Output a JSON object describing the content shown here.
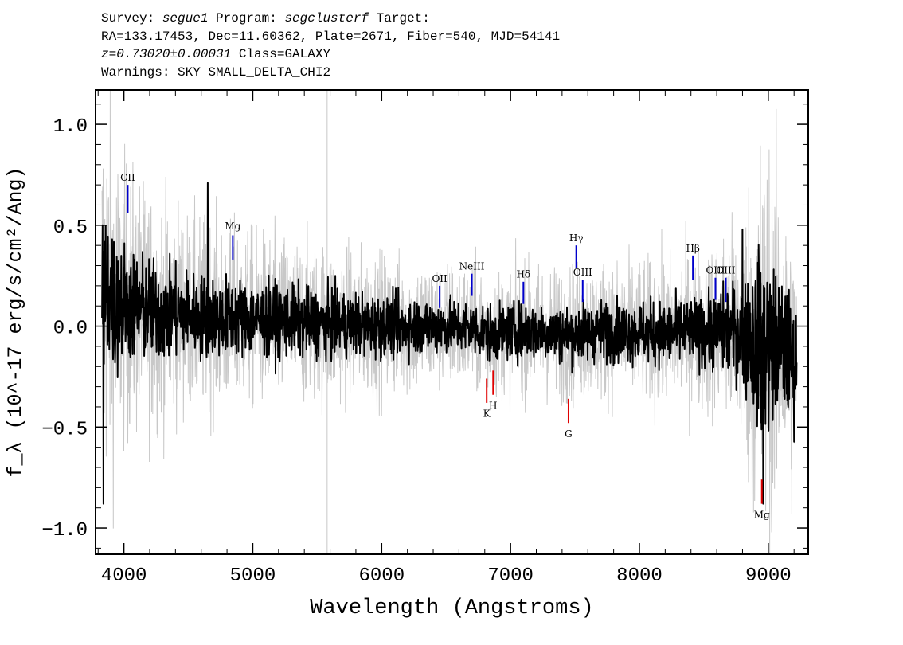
{
  "header": {
    "survey_label": "Survey: ",
    "survey": "segue1",
    "program_label": " Program: ",
    "program": "segclusterf",
    "target_label": " Target:",
    "line2": "RA=133.17453, Dec=11.60362, Plate=2671, Fiber=540, MJD=54141",
    "redshift": "z=0.73020±0.00031",
    "class_text": " Class=GALAXY",
    "warnings": "Warnings: SKY SMALL_DELTA_CHI2"
  },
  "chart_data": {
    "type": "line",
    "xlabel": "Wavelength (Angstroms)",
    "ylabel": "f_λ (10^-17 erg/s/cm²/Ang)",
    "xlim": [
      3780,
      9310
    ],
    "ylim": [
      -1.13,
      1.17
    ],
    "xticks": [
      4000,
      5000,
      6000,
      7000,
      8000,
      9000
    ],
    "yticks": [
      1.0,
      0.5,
      0.0,
      -0.5,
      -1.0
    ],
    "ytick_labels": [
      "1.0",
      "0.5",
      "0.0",
      "−0.5",
      "−1.0"
    ],
    "series": [
      {
        "role": "flux",
        "color": "#000000",
        "x": [
          3830,
          3880,
          3930,
          4000,
          4080,
          4160,
          4250,
          4350,
          4450,
          4550,
          4650,
          4750,
          4850,
          4950,
          5050,
          5200,
          5400,
          5600,
          5800,
          6000,
          6200,
          6400,
          6550,
          6700,
          6850,
          7000,
          7150,
          7300,
          7450,
          7600,
          7750,
          7900,
          8050,
          8200,
          8350,
          8500,
          8650,
          8800,
          8950,
          9100,
          9220
        ],
        "y": [
          0.12,
          0.18,
          0.1,
          0.12,
          0.1,
          0.08,
          0.07,
          0.06,
          0.07,
          0.05,
          0.05,
          0.04,
          0.05,
          0.04,
          0.03,
          0.03,
          0.02,
          0.01,
          0.01,
          0.0,
          0.0,
          0.0,
          0.0,
          -0.01,
          -0.04,
          -0.03,
          -0.02,
          -0.03,
          -0.04,
          -0.03,
          -0.02,
          -0.03,
          -0.03,
          -0.04,
          -0.02,
          -0.03,
          -0.02,
          -0.03,
          -0.1,
          -0.1,
          -0.2
        ]
      },
      {
        "role": "error envelope (1σ)",
        "color": "#c8c8c8",
        "x": [
          3830,
          3900,
          4000,
          4200,
          4500,
          5000,
          5500,
          6000,
          6500,
          7000,
          7500,
          8000,
          8500,
          8800,
          8950,
          9100,
          9220
        ],
        "y": [
          0.55,
          0.45,
          0.35,
          0.3,
          0.25,
          0.22,
          0.2,
          0.18,
          0.16,
          0.16,
          0.17,
          0.18,
          0.2,
          0.3,
          0.55,
          0.4,
          0.35
        ]
      }
    ],
    "spikes": [
      {
        "x": 3840,
        "y": -0.88
      },
      {
        "x": 4650,
        "y": 0.71
      },
      {
        "x": 8960,
        "y": -0.88
      },
      {
        "x": 8800,
        "y": 0.48
      }
    ],
    "sky_line_x": 5577,
    "emission_lines": [
      {
        "label": "CII",
        "x": 4030,
        "y1": 0.56,
        "y2": 0.7,
        "label_y": 0.72
      },
      {
        "label": "Mg",
        "x": 4845,
        "y1": 0.33,
        "y2": 0.45,
        "label_y": 0.48
      },
      {
        "label": "OII",
        "x": 6450,
        "y1": 0.09,
        "y2": 0.2,
        "label_y": 0.22
      },
      {
        "label": "NeIII",
        "x": 6700,
        "y1": 0.15,
        "y2": 0.26,
        "label_y": 0.28
      },
      {
        "label": "Hδ",
        "x": 7100,
        "y1": 0.11,
        "y2": 0.22,
        "label_y": 0.24
      },
      {
        "label": "Hγ",
        "x": 7510,
        "y1": 0.29,
        "y2": 0.4,
        "label_y": 0.42
      },
      {
        "label": "OIII",
        "x": 7560,
        "y1": 0.12,
        "y2": 0.23,
        "label_y": 0.25
      },
      {
        "label": "Hβ",
        "x": 8415,
        "y1": 0.23,
        "y2": 0.35,
        "label_y": 0.37
      },
      {
        "label": "OIII",
        "x": 8590,
        "y1": 0.13,
        "y2": 0.24,
        "label_y": 0.26
      },
      {
        "label": "OIII",
        "x": 8670,
        "y1": 0.12,
        "y2": 0.24,
        "label_y": 0.26
      }
    ],
    "absorption_lines": [
      {
        "label": "K",
        "x": 6815,
        "y1": -0.38,
        "y2": -0.26,
        "label_y": -0.45
      },
      {
        "label": "H",
        "x": 6865,
        "y1": -0.34,
        "y2": -0.22,
        "label_y": -0.41
      },
      {
        "label": "G",
        "x": 7450,
        "y1": -0.48,
        "y2": -0.36,
        "label_y": -0.55
      },
      {
        "label": "Mg",
        "x": 8950,
        "y1": -0.88,
        "y2": -0.76,
        "label_y": -0.95
      }
    ],
    "colors": {
      "emission": "#0000cc",
      "absorption": "#e00000",
      "sky": "#c8c8c8"
    }
  }
}
